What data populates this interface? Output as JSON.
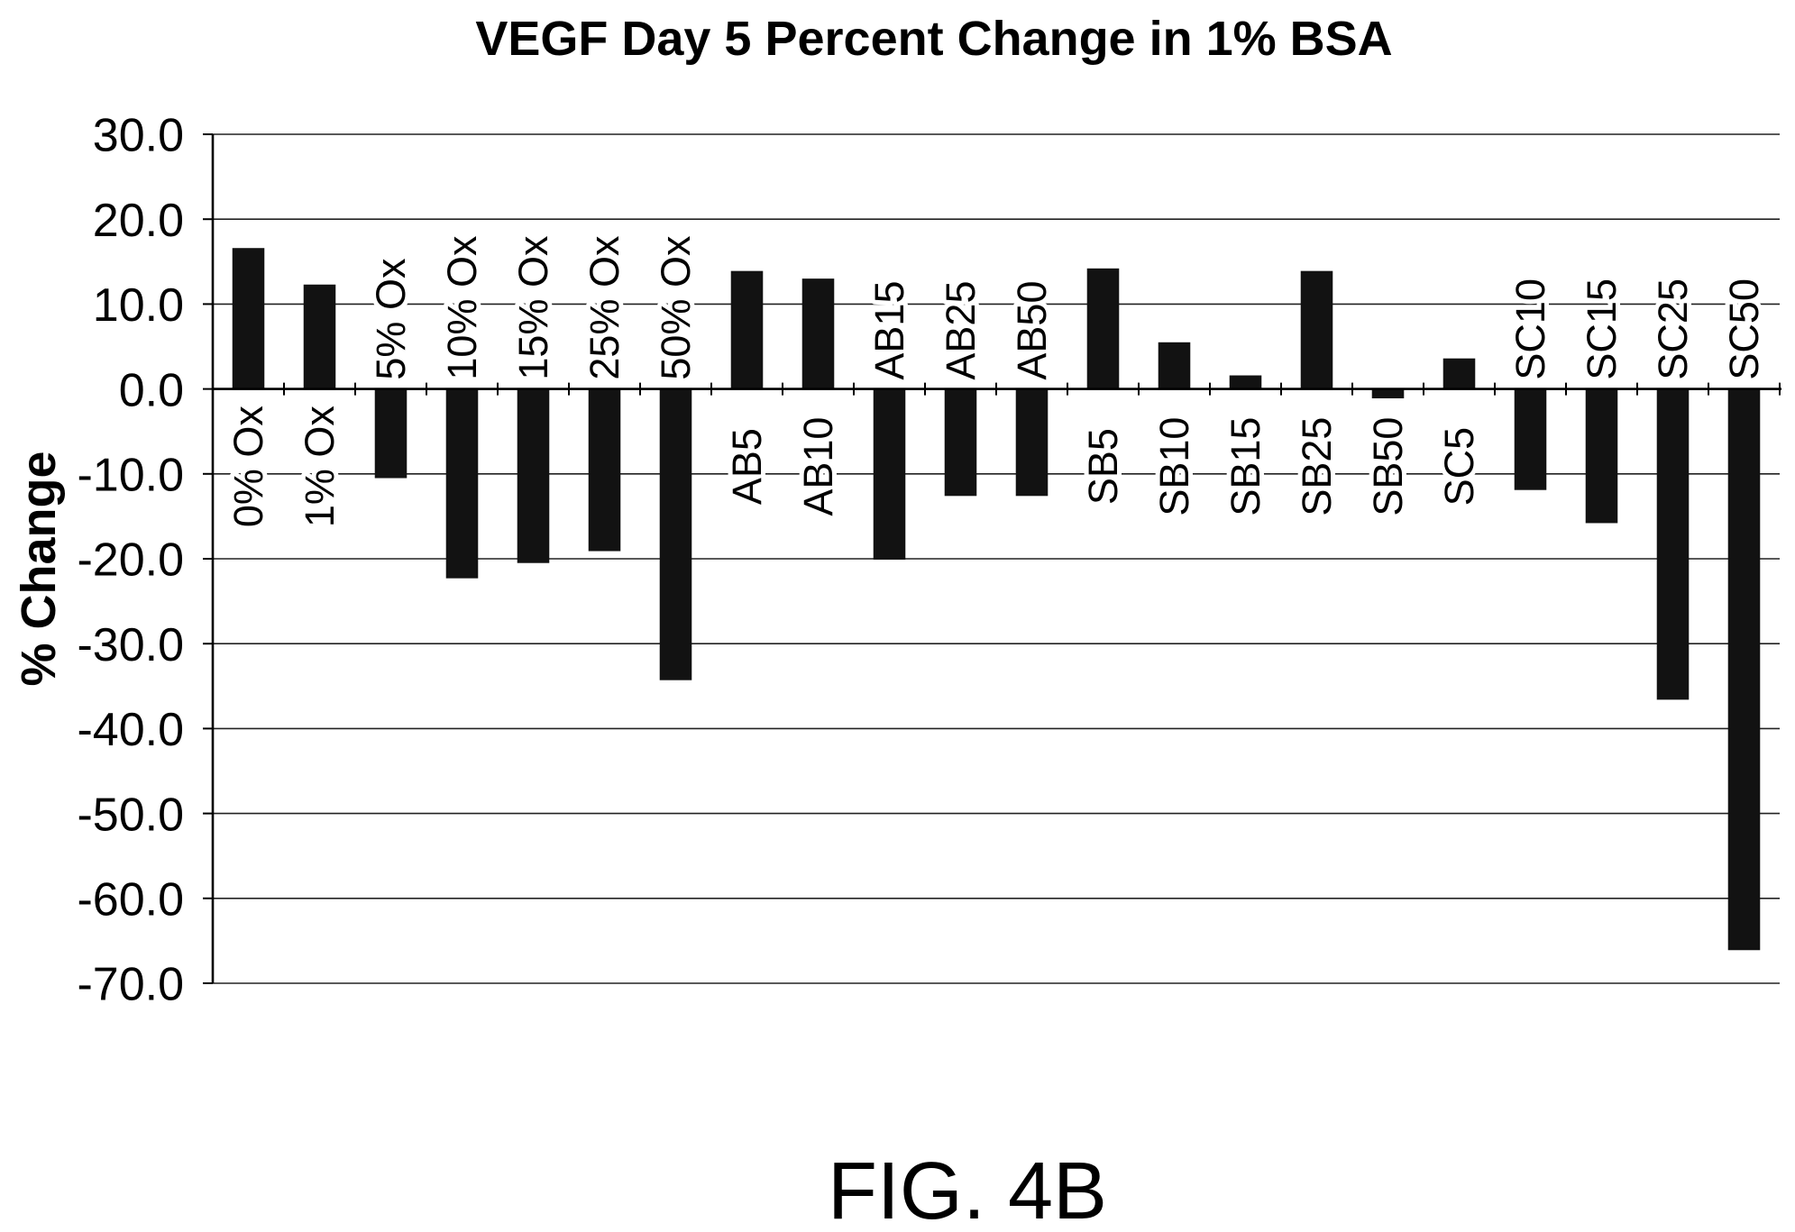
{
  "chart_data": {
    "type": "bar",
    "title": "VEGF Day 5 Percent Change in 1% BSA",
    "ylabel": "% Change",
    "categories": [
      "0% Ox",
      "1% Ox",
      "5% Ox",
      "10% Ox",
      "15% Ox",
      "25% Ox",
      "50% Ox",
      "AB5",
      "AB10",
      "AB15",
      "AB25",
      "AB50",
      "SB5",
      "SB10",
      "SB15",
      "SB25",
      "SB50",
      "SC5",
      "SC10",
      "SC15",
      "SC25",
      "SC50"
    ],
    "values": [
      16.6,
      12.3,
      -10.5,
      -22.3,
      -20.5,
      -19.1,
      -34.3,
      13.9,
      13.0,
      -20.1,
      -12.6,
      -12.6,
      14.2,
      5.5,
      1.6,
      13.9,
      -1.1,
      3.6,
      -11.9,
      -15.8,
      -36.6,
      -66.1
    ],
    "ylim": [
      -70,
      30
    ],
    "ytick_labels": [
      "30.0",
      "20.0",
      "10.0",
      "0.0",
      "-10.0",
      "-20.0",
      "-30.0",
      "-40.0",
      "-50.0",
      "-60.0",
      "-70.0"
    ],
    "grid": true,
    "colors": {
      "bars": "#121212",
      "gridlines": "#222222"
    }
  },
  "figure_label": "FIG. 4B"
}
